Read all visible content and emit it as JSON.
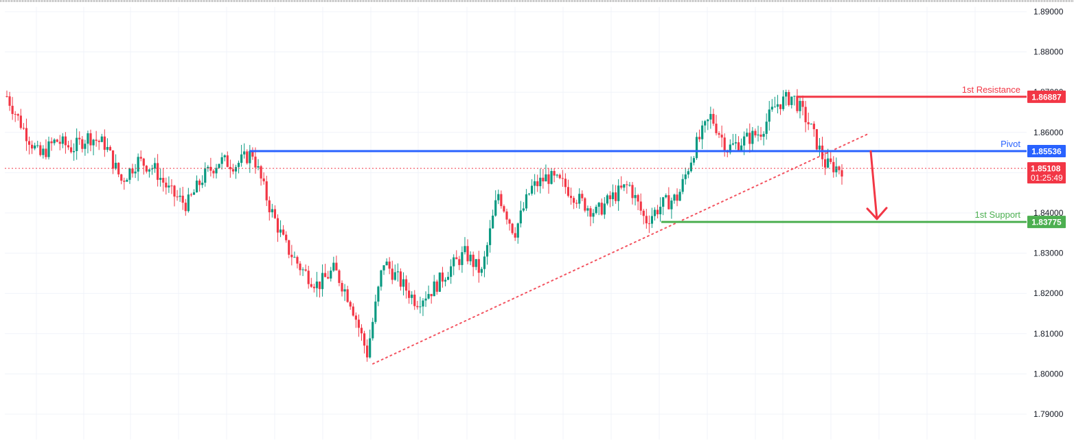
{
  "chart_data": {
    "type": "candlestick",
    "title": "",
    "xlabel": "",
    "ylabel": "",
    "ylim": [
      1.785,
      1.895
    ],
    "y_ticks": [
      "1.89000",
      "1.88000",
      "1.87000",
      "1.86000",
      "1.85000",
      "1.84000",
      "1.83000",
      "1.82000",
      "1.81000",
      "1.80000",
      "1.79000"
    ],
    "grid": true,
    "current_price": "1.85108",
    "countdown": "01:25:49",
    "levels": [
      {
        "name": "1st Resistance",
        "value": "1.86887",
        "color": "#f23645"
      },
      {
        "name": "Pivot",
        "value": "1.85536",
        "color": "#2962ff"
      },
      {
        "name": "1st Support",
        "value": "1.83775",
        "color": "#4caf50"
      }
    ],
    "trendline": {
      "style": "dotted",
      "color": "#f23645",
      "from": {
        "x": 543,
        "price": 1.8025
      },
      "to": {
        "x": 1265,
        "price": 1.8597
      }
    },
    "projection_arrow": {
      "direction": "down",
      "color": "#f23645",
      "from_price": 1.8553,
      "to_price": 1.8385
    },
    "approx_close_path": [
      1.869,
      1.861,
      1.854,
      1.858,
      1.856,
      1.859,
      1.857,
      1.848,
      1.853,
      1.851,
      1.845,
      1.842,
      1.849,
      1.853,
      1.852,
      1.855,
      1.842,
      1.832,
      1.826,
      1.822,
      1.826,
      1.818,
      1.805,
      1.828,
      1.823,
      1.818,
      1.821,
      1.826,
      1.83,
      1.825,
      1.845,
      1.835,
      1.846,
      1.849,
      1.847,
      1.843,
      1.84,
      1.844,
      1.847,
      1.838,
      1.842,
      1.844,
      1.856,
      1.864,
      1.856,
      1.858,
      1.86,
      1.867,
      1.869,
      1.862,
      1.852,
      1.851
    ]
  },
  "colors": {
    "up": "#089981",
    "down": "#f23645",
    "grid": "#f0f3fa",
    "axis_text": "#131722"
  }
}
